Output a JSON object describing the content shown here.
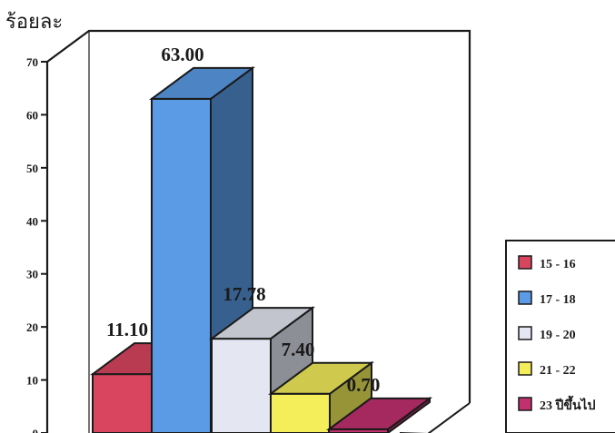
{
  "chart_data": {
    "type": "bar",
    "ylabel": "ร้อยละ",
    "ylim": [
      0,
      70
    ],
    "yticks": [
      "0",
      "10",
      "20",
      "30",
      "40",
      "50",
      "60",
      "70"
    ],
    "categories": [
      "15 - 16",
      "17 - 18",
      "19 - 20",
      "21 - 22",
      "23 ปีขึ้นไป"
    ],
    "values": [
      11.1,
      63.0,
      17.78,
      7.4,
      0.7
    ],
    "data_labels": [
      "11.10",
      "63.00",
      "17.78",
      "7.40",
      "0.70"
    ],
    "colors": [
      "#d9455f",
      "#5b9be6",
      "#e4e6f2",
      "#f3ee5a",
      "#c2306e"
    ],
    "legend_position": "right",
    "three_d": true
  }
}
